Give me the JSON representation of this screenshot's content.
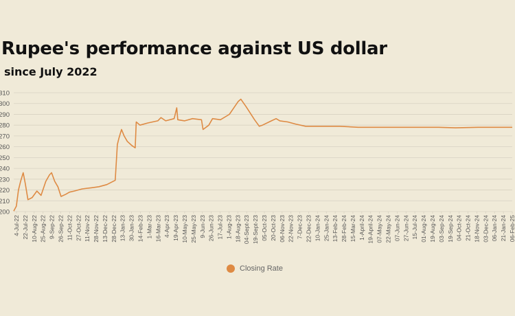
{
  "colors": {
    "line": "#de8a43",
    "grid": "#d8d2c2",
    "text": "#555555",
    "background": "#f0ead8"
  },
  "chart_data": {
    "type": "line",
    "title": "Rupee's performance against US dollar",
    "subtitle": "since July 2022",
    "y_tick_labels": [
      "200",
      "210",
      "220",
      "230",
      "240",
      "250",
      "260",
      "270",
      "280",
      "290",
      "300",
      "310"
    ],
    "ylim": [
      200,
      310
    ],
    "grid": true,
    "legend": "bottom-center",
    "x_tick_labels": [
      "4-Jul-22",
      "22-Jul-22",
      "10-Aug-22",
      "25-Aug-22",
      "9-Sep-22",
      "26-Sep-22",
      "11-Oct-22",
      "27-Oct-22",
      "11-Nov-22",
      "28-Nov-22",
      "13-Dec-22",
      "28-Dec-22",
      "13-Jan-23",
      "30-Jan-23",
      "14-Feb-23",
      "1-Mar-23",
      "16-Mar-23",
      "4-Apr-23",
      "19-Apr-23",
      "10-May-23",
      "25-May-23",
      "9-Jun-23",
      "26-Jun-23",
      "17-Jul-23",
      "1-Aug-23",
      "18-Aug-23",
      "04-Sept-23",
      "19-Sept-23",
      "05-Oct-23",
      "20-Oct-23",
      "06-Nov-23",
      "22-Nov-23",
      "7-Dec-23",
      "22-Dec-23",
      "10-Jan-24",
      "25-Jan-24",
      "13-Feb-24",
      "28-Feb-24",
      "15-Mar-24",
      "1-April-24",
      "19-April-24",
      "07-May-24",
      "22-May-24",
      "07-Jun-24",
      "27-Jun-24",
      "15-Jul-24",
      "01-Aug-24",
      "19-Aug-24",
      "03-Sep-24",
      "19-Sep-24",
      "04-Oct-24",
      "21-Oct-24",
      "18-Nov-24",
      "03-Dec-24",
      "06-Jan-24",
      "21-Jan-24",
      "06-Feb-25"
    ],
    "series": [
      {
        "name": "Closing Rate",
        "points": [
          [
            "2022-07-04",
            200.5
          ],
          [
            "2022-07-09",
            205
          ],
          [
            "2022-07-13",
            220
          ],
          [
            "2022-07-17",
            228
          ],
          [
            "2022-07-22",
            236
          ],
          [
            "2022-07-26",
            226
          ],
          [
            "2022-07-31",
            211
          ],
          [
            "2022-08-08",
            213
          ],
          [
            "2022-08-17",
            219
          ],
          [
            "2022-08-25",
            215
          ],
          [
            "2022-09-03",
            228
          ],
          [
            "2022-09-10",
            234
          ],
          [
            "2022-09-14",
            236
          ],
          [
            "2022-09-20",
            228
          ],
          [
            "2022-09-26",
            223
          ],
          [
            "2022-10-02",
            214
          ],
          [
            "2022-10-11",
            216
          ],
          [
            "2022-10-18",
            218
          ],
          [
            "2022-10-27",
            219
          ],
          [
            "2022-11-11",
            221
          ],
          [
            "2022-11-28",
            222
          ],
          [
            "2022-12-13",
            223
          ],
          [
            "2022-12-28",
            225
          ],
          [
            "2023-01-13",
            229
          ],
          [
            "2023-01-17",
            262
          ],
          [
            "2023-01-20",
            268
          ],
          [
            "2023-01-25",
            276
          ],
          [
            "2023-01-30",
            270
          ],
          [
            "2023-02-05",
            265
          ],
          [
            "2023-02-14",
            261
          ],
          [
            "2023-02-20",
            259
          ],
          [
            "2023-02-22",
            283
          ],
          [
            "2023-03-01",
            280
          ],
          [
            "2023-03-16",
            282
          ],
          [
            "2023-04-04",
            284
          ],
          [
            "2023-04-10",
            287
          ],
          [
            "2023-04-19",
            284
          ],
          [
            "2023-05-05",
            286
          ],
          [
            "2023-05-10",
            296
          ],
          [
            "2023-05-12",
            285
          ],
          [
            "2023-05-25",
            284
          ],
          [
            "2023-06-09",
            286
          ],
          [
            "2023-06-26",
            285
          ],
          [
            "2023-06-29",
            276
          ],
          [
            "2023-07-10",
            280
          ],
          [
            "2023-07-17",
            286
          ],
          [
            "2023-08-01",
            285
          ],
          [
            "2023-08-18",
            290
          ],
          [
            "2023-08-28",
            297
          ],
          [
            "2023-09-04",
            302
          ],
          [
            "2023-09-09",
            304
          ],
          [
            "2023-09-19",
            297
          ],
          [
            "2023-10-05",
            285
          ],
          [
            "2023-10-14",
            279
          ],
          [
            "2023-10-20",
            280
          ],
          [
            "2023-11-06",
            284
          ],
          [
            "2023-11-15",
            286
          ],
          [
            "2023-11-22",
            284
          ],
          [
            "2023-12-07",
            283
          ],
          [
            "2023-12-22",
            281
          ],
          [
            "2024-01-10",
            279
          ],
          [
            "2024-01-25",
            279
          ],
          [
            "2024-02-13",
            279
          ],
          [
            "2024-03-15",
            279
          ],
          [
            "2024-04-19",
            278
          ],
          [
            "2024-06-07",
            278
          ],
          [
            "2024-08-01",
            278
          ],
          [
            "2024-09-19",
            278
          ],
          [
            "2024-10-21",
            277.5
          ],
          [
            "2024-12-03",
            278
          ],
          [
            "2025-01-21",
            278
          ],
          [
            "2025-02-06",
            278
          ]
        ]
      }
    ]
  }
}
